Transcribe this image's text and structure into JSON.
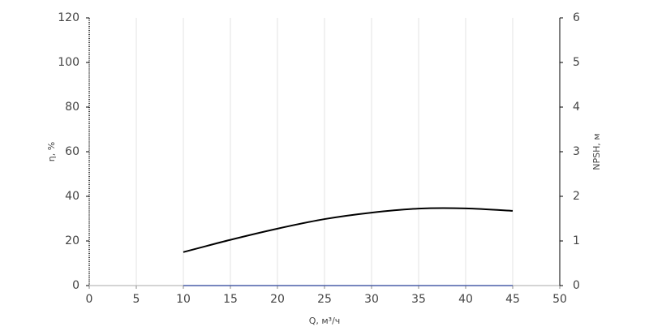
{
  "chart_data": {
    "type": "line",
    "x_label": "Q, м³/ч",
    "y_label": "η, %",
    "y2_label": "NPSH, м",
    "x": [
      10,
      15,
      20,
      25,
      30,
      35,
      40,
      45
    ],
    "series": [
      {
        "color": "#000000",
        "values": [
          15,
          20.5,
          25.5,
          29.8,
          32.7,
          34.5,
          34.6,
          33.5
        ]
      },
      {
        "color": "#4a5fa8",
        "axis": "y2",
        "values": [
          0,
          0,
          0,
          0,
          0,
          0,
          0,
          0
        ]
      }
    ],
    "xlim": [
      0,
      50
    ],
    "xticks": [
      0,
      5,
      10,
      15,
      20,
      25,
      30,
      35,
      40,
      45,
      50
    ],
    "ylim": [
      0,
      120
    ],
    "yticks": [
      0,
      20,
      40,
      60,
      80,
      100,
      120
    ],
    "y2lim": [
      0,
      6
    ],
    "y2ticks": [
      0,
      1,
      2,
      3,
      4,
      5,
      6
    ],
    "grid": true
  }
}
